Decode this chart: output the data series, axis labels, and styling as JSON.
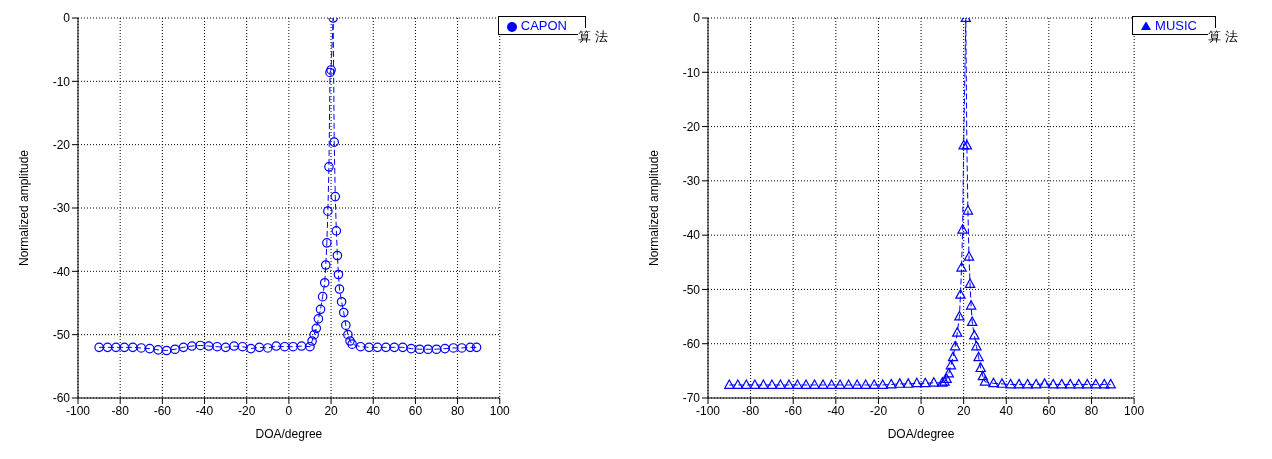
{
  "chart_data": [
    {
      "type": "line",
      "xlabel": "DOA/degree",
      "ylabel": "Normalized amplitude",
      "annotations": [
        "算法"
      ],
      "legend": "top right",
      "grid": true,
      "marker": "circle",
      "line_style": "dashed",
      "xlim": [
        -100,
        100
      ],
      "xticks": [
        -100,
        -80,
        -60,
        -40,
        -20,
        0,
        20,
        40,
        60,
        80,
        100
      ],
      "ylim": [
        -60,
        0
      ],
      "yticks": [
        -60,
        -50,
        -40,
        -30,
        -20,
        -10,
        0
      ],
      "x": [
        -90,
        -86,
        -82,
        -78,
        -74,
        -70,
        -66,
        -62,
        -58,
        -54,
        -50,
        -46,
        -42,
        -38,
        -34,
        -30,
        -26,
        -22,
        -18,
        -14,
        -10,
        -6,
        -2,
        2,
        6,
        10,
        11,
        12,
        13,
        14,
        15,
        16,
        17,
        17.5,
        18,
        18.5,
        19,
        19.5,
        20,
        21,
        21.5,
        22,
        22.5,
        23,
        23.5,
        24,
        25,
        26,
        27,
        28,
        29,
        30,
        34,
        38,
        42,
        46,
        50,
        54,
        58,
        62,
        66,
        70,
        74,
        78,
        82,
        86,
        89
      ],
      "series": [
        {
          "name": "CAPON",
          "color": "#0000ff",
          "values": [
            -52,
            -52,
            -52,
            -52,
            -52,
            -52.1,
            -52.2,
            -52.4,
            -52.5,
            -52.3,
            -52,
            -51.8,
            -51.7,
            -51.8,
            -51.9,
            -52,
            -51.8,
            -51.9,
            -52.2,
            -52,
            -52.1,
            -51.8,
            -51.9,
            -51.9,
            -51.8,
            -51.9,
            -51,
            -50,
            -49,
            -47.5,
            -46,
            -44,
            -41.8,
            -39,
            -35.5,
            -30.5,
            -23.5,
            -8.6,
            -8.2,
            0,
            -19.6,
            -28.2,
            -33.6,
            -37.5,
            -40.5,
            -42.8,
            -44.8,
            -46.5,
            -48.5,
            -50,
            -51,
            -51.5,
            -51.9,
            -52,
            -52,
            -52,
            -52,
            -52,
            -52.2,
            -52.3,
            -52.3,
            -52.3,
            -52.2,
            -52.1,
            -52.1,
            -52,
            -52
          ]
        }
      ]
    },
    {
      "type": "line",
      "xlabel": "DOA/degree",
      "ylabel": "Normalized amplitude",
      "annotations": [
        "算法"
      ],
      "legend": "top right",
      "grid": true,
      "marker": "triangle",
      "line_style": "dashed",
      "xlim": [
        -100,
        100
      ],
      "xticks": [
        -100,
        -80,
        -60,
        -40,
        -20,
        0,
        20,
        40,
        60,
        80,
        100
      ],
      "ylim": [
        -70,
        0
      ],
      "yticks": [
        -70,
        -60,
        -50,
        -40,
        -30,
        -20,
        -10,
        0
      ],
      "x": [
        -90,
        -86,
        -82,
        -78,
        -74,
        -70,
        -66,
        -62,
        -58,
        -54,
        -50,
        -46,
        -42,
        -38,
        -34,
        -30,
        -26,
        -22,
        -18,
        -14,
        -10,
        -6,
        -2,
        2,
        6,
        10,
        11,
        12,
        13,
        14,
        15,
        16,
        17,
        18,
        18.5,
        19,
        19.5,
        20,
        21,
        21.5,
        22,
        22.5,
        23,
        23.5,
        24,
        25,
        26,
        27,
        28,
        29,
        30,
        34,
        38,
        42,
        46,
        50,
        54,
        58,
        62,
        66,
        70,
        74,
        78,
        82,
        86,
        89
      ],
      "series": [
        {
          "name": "MUSIC",
          "color": "#0000ff",
          "values": [
            -67.6,
            -67.6,
            -67.6,
            -67.6,
            -67.6,
            -67.6,
            -67.6,
            -67.6,
            -67.6,
            -67.6,
            -67.6,
            -67.6,
            -67.6,
            -67.6,
            -67.6,
            -67.6,
            -67.6,
            -67.6,
            -67.6,
            -67.5,
            -67.4,
            -67.4,
            -67.3,
            -67.3,
            -67.2,
            -67.2,
            -67,
            -66.5,
            -65.5,
            -64,
            -62.5,
            -60.5,
            -58,
            -55,
            -51,
            -46,
            -39,
            -23.5,
            0,
            -23.5,
            -35.5,
            -44,
            -49,
            -53,
            -56,
            -58.5,
            -60.5,
            -62.5,
            -64.5,
            -66,
            -67,
            -67.3,
            -67.4,
            -67.5,
            -67.5,
            -67.5,
            -67.5,
            -67.4,
            -67.5,
            -67.5,
            -67.5,
            -67.5,
            -67.5,
            -67.5,
            -67.5,
            -67.5
          ]
        }
      ]
    }
  ]
}
